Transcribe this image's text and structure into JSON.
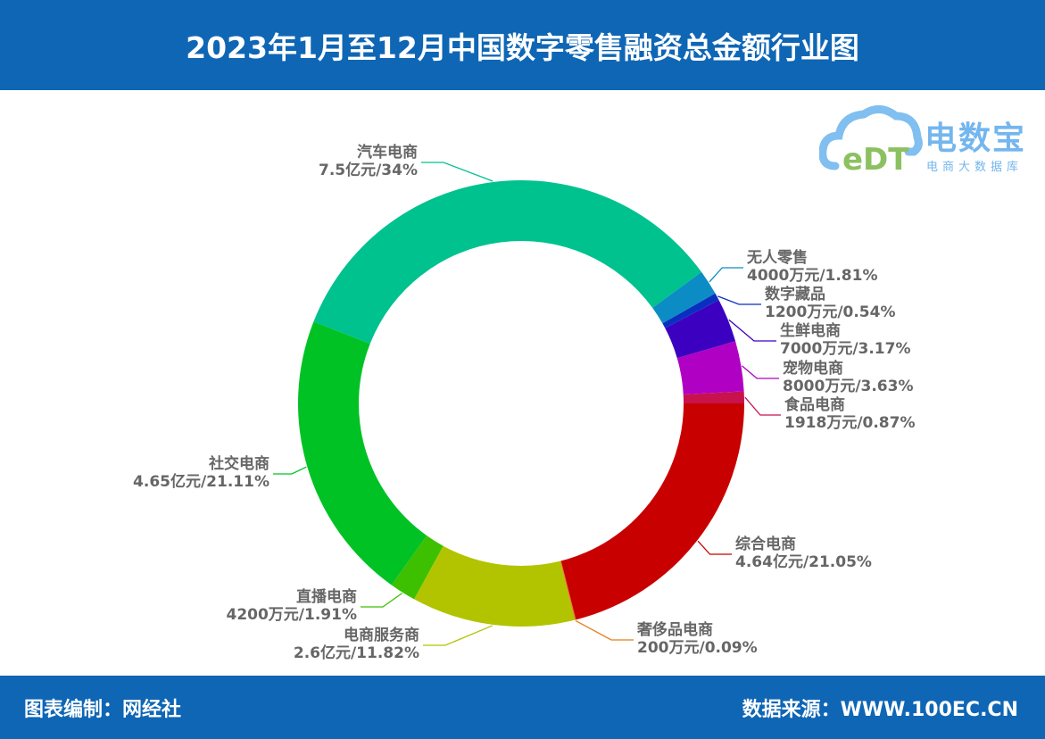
{
  "header": {
    "title": "2023年1月至12月中国数字零售融资总金额行业图"
  },
  "logo": {
    "main": "电数宝",
    "sub": "电商大数据库",
    "mark": "eDT"
  },
  "footer": {
    "left": "图表编制：网经社",
    "right": "数据来源：WWW.100EC.CN"
  },
  "chart_data": {
    "type": "pie",
    "variant": "donut",
    "title": "2023年1月至12月中国数字零售融资总金额行业图",
    "legend": "none",
    "direction": "counterclockwise from 3 o'clock",
    "slices": [
      {
        "name": "食品电商",
        "amount": "1918万元",
        "percent": 0.87,
        "label": "1918万元/0.87%",
        "color": "#c8124e"
      },
      {
        "name": "宠物电商",
        "amount": "8000万元",
        "percent": 3.63,
        "label": "8000万元/3.63%",
        "color": "#b000c4"
      },
      {
        "name": "生鲜电商",
        "amount": "7000万元",
        "percent": 3.17,
        "label": "7000万元/3.17%",
        "color": "#3c00c0"
      },
      {
        "name": "数字藏品",
        "amount": "1200万元",
        "percent": 0.54,
        "label": "1200万元/0.54%",
        "color": "#0a2fc0"
      },
      {
        "name": "无人零售",
        "amount": "4000万元",
        "percent": 1.81,
        "label": "4000万元/1.81%",
        "color": "#0c8cc4"
      },
      {
        "name": "汽车电商",
        "amount": "7.5亿元",
        "percent": 34,
        "label": "7.5亿元/34%",
        "color": "#00c28e"
      },
      {
        "name": "社交电商",
        "amount": "4.65亿元",
        "percent": 21.11,
        "label": "4.65亿元/21.11%",
        "color": "#00c224"
      },
      {
        "name": "直播电商",
        "amount": "4200万元",
        "percent": 1.91,
        "label": "4200万元/1.91%",
        "color": "#3cc000"
      },
      {
        "name": "电商服务商",
        "amount": "2.6亿元",
        "percent": 11.82,
        "label": "2.6亿元/11.82%",
        "color": "#b2c400"
      },
      {
        "name": "奢侈品电商",
        "amount": "200万元",
        "percent": 0.09,
        "label": "200万元/0.09%",
        "color": "#e0801c"
      },
      {
        "name": "综合电商",
        "amount": "4.64亿元",
        "percent": 21.05,
        "label": "4.64亿元/21.05%",
        "color": "#c80000"
      }
    ]
  }
}
